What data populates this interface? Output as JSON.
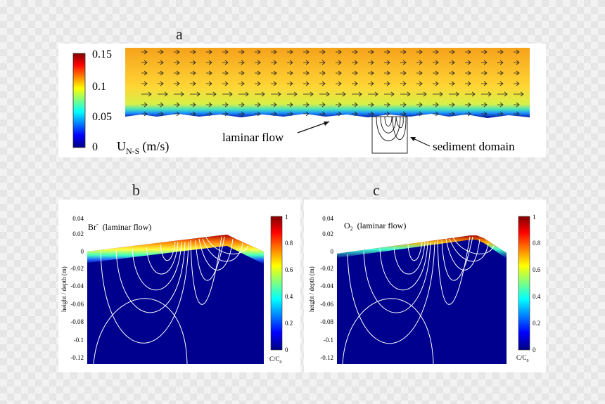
{
  "panels": {
    "a": {
      "label": "a",
      "colorbar_ticks": [
        "0.15",
        "0.1",
        "0.05",
        "0"
      ],
      "colorbar_unit_main": "U",
      "colorbar_unit_sub": "N-S",
      "colorbar_unit_rest": "(m/s)",
      "annotation_laminar": "laminar flow",
      "annotation_sediment": "sediment domain"
    },
    "b": {
      "label": "b",
      "title_species": "Br",
      "title_species_sup": "-",
      "title_note": "(laminar flow)",
      "ylabel": "height / depth (m)",
      "yticks": [
        "0.04",
        "0.02",
        "0",
        "-0.02",
        "-0.04",
        "-0.06",
        "-0.08",
        "-0.1",
        "-0.12"
      ],
      "colorbar_ticks": [
        "1",
        "0.8",
        "0.6",
        "0.4",
        "0.2",
        "0"
      ],
      "colorbar_label": "C/C",
      "colorbar_label_sub": "0"
    },
    "c": {
      "label": "c",
      "title_species": "O",
      "title_species_sub": "2",
      "title_note": "(laminar flow)",
      "ylabel": "height / depth (m)",
      "yticks": [
        "0.04",
        "0.02",
        "0",
        "-0.02",
        "-0.04",
        "-0.06",
        "-0.08",
        "-0.1",
        "-0.12"
      ],
      "colorbar_ticks": [
        "1",
        "0.8",
        "0.6",
        "0.4",
        "0.2",
        "0"
      ],
      "colorbar_label": "C/C",
      "colorbar_label_sub": "0"
    }
  },
  "colors": {
    "jet_top": "#7f0000",
    "jet_red": "#ff0000",
    "jet_yellow": "#ffff00",
    "jet_cyan": "#00ffff",
    "jet_blue": "#0000ff",
    "jet_bottom": "#00007f"
  }
}
